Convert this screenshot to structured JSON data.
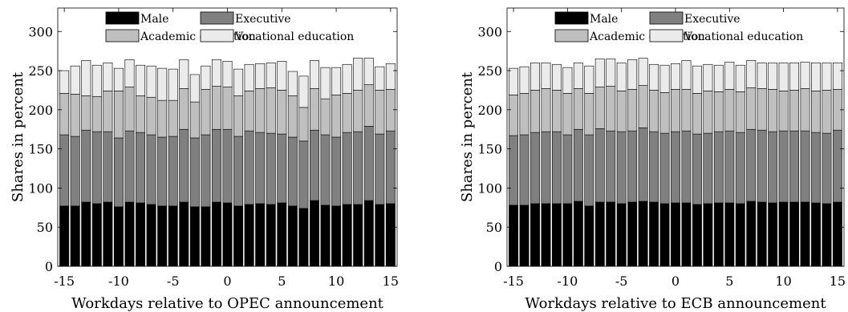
{
  "chart_data": [
    {
      "type": "bar",
      "stacked": true,
      "xlabel": "Workdays relative to OPEC announcement",
      "ylabel": "Shares in percent",
      "ylim": [
        0,
        330
      ],
      "yticks": [
        0,
        50,
        100,
        150,
        200,
        250,
        300
      ],
      "xticks": [
        -15,
        -10,
        -5,
        0,
        5,
        10,
        15
      ],
      "legend_position": "top",
      "x": [
        -15,
        -14,
        -13,
        -12,
        -11,
        -10,
        -9,
        -8,
        -7,
        -6,
        -5,
        -4,
        -3,
        -2,
        -1,
        0,
        1,
        2,
        3,
        4,
        5,
        6,
        7,
        8,
        9,
        10,
        11,
        12,
        13,
        14,
        15
      ],
      "series": [
        {
          "name": "Male",
          "color": "#000000",
          "values": [
            77,
            77,
            82,
            80,
            82,
            76,
            82,
            81,
            79,
            77,
            77,
            82,
            76,
            76,
            82,
            81,
            77,
            79,
            80,
            79,
            81,
            77,
            74,
            84,
            78,
            77,
            79,
            79,
            84,
            79,
            80
          ]
        },
        {
          "name": "Executive",
          "color": "#808080",
          "values": [
            91,
            89,
            92,
            92,
            90,
            88,
            91,
            90,
            89,
            88,
            89,
            93,
            88,
            92,
            93,
            94,
            89,
            94,
            91,
            91,
            88,
            88,
            86,
            90,
            90,
            88,
            92,
            93,
            95,
            90,
            93
          ]
        },
        {
          "name": "Academic education",
          "color": "#bfbfbf",
          "values": [
            53,
            54,
            44,
            45,
            52,
            60,
            56,
            47,
            48,
            47,
            46,
            52,
            46,
            58,
            55,
            54,
            52,
            51,
            56,
            58,
            56,
            53,
            43,
            53,
            46,
            54,
            50,
            53,
            53,
            56,
            53
          ]
        },
        {
          "name": "Vocational education",
          "color": "#ebebeb",
          "values": [
            29,
            36,
            45,
            40,
            36,
            29,
            35,
            39,
            40,
            41,
            40,
            37,
            35,
            30,
            34,
            33,
            34,
            34,
            32,
            32,
            37,
            31,
            40,
            36,
            40,
            35,
            37,
            41,
            34,
            30,
            33
          ]
        }
      ]
    },
    {
      "type": "bar",
      "stacked": true,
      "xlabel": "Workdays relative to ECB announcement",
      "ylabel": "Shares in percent",
      "ylim": [
        0,
        330
      ],
      "yticks": [
        0,
        50,
        100,
        150,
        200,
        250,
        300
      ],
      "xticks": [
        -15,
        -10,
        -5,
        0,
        5,
        10,
        15
      ],
      "legend_position": "top",
      "x": [
        -15,
        -14,
        -13,
        -12,
        -11,
        -10,
        -9,
        -8,
        -7,
        -6,
        -5,
        -4,
        -3,
        -2,
        -1,
        0,
        1,
        2,
        3,
        4,
        5,
        6,
        7,
        8,
        9,
        10,
        11,
        12,
        13,
        14,
        15
      ],
      "series": [
        {
          "name": "Male",
          "color": "#000000",
          "values": [
            78,
            78,
            80,
            80,
            80,
            80,
            83,
            77,
            82,
            82,
            80,
            82,
            83,
            82,
            80,
            81,
            81,
            79,
            80,
            81,
            81,
            80,
            83,
            82,
            81,
            82,
            82,
            82,
            81,
            80,
            82
          ]
        },
        {
          "name": "Executive",
          "color": "#808080",
          "values": [
            89,
            90,
            91,
            92,
            92,
            88,
            92,
            91,
            94,
            91,
            92,
            91,
            94,
            90,
            90,
            91,
            92,
            90,
            90,
            91,
            92,
            91,
            92,
            92,
            91,
            91,
            91,
            91,
            90,
            90,
            92
          ]
        },
        {
          "name": "Academic education",
          "color": "#bfbfbf",
          "values": [
            52,
            53,
            54,
            55,
            53,
            53,
            52,
            53,
            53,
            57,
            52,
            53,
            54,
            53,
            52,
            54,
            53,
            52,
            54,
            51,
            53,
            52,
            53,
            53,
            54,
            51,
            52,
            54,
            53,
            55,
            52
          ]
        },
        {
          "name": "Vocational education",
          "color": "#ebebeb",
          "values": [
            34,
            34,
            35,
            33,
            33,
            33,
            33,
            35,
            36,
            35,
            36,
            38,
            35,
            33,
            35,
            33,
            37,
            35,
            34,
            34,
            35,
            34,
            35,
            33,
            34,
            36,
            35,
            34,
            36,
            35,
            34
          ]
        }
      ]
    }
  ]
}
